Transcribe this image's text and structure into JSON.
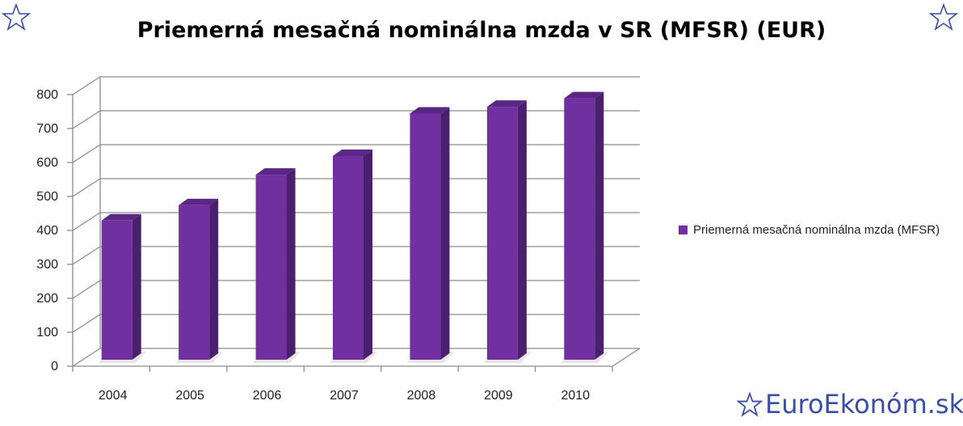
{
  "title": "Priemerná mesačná nominálna mzda v SR (MFSR) (EUR)",
  "brand": {
    "text": "EuroEkonóm.sk",
    "color": "#3a4ea6",
    "icon": "star-outline-icon"
  },
  "colors": {
    "bar_front": "#7030a0",
    "bar_side": "#4a1f6e",
    "bar_top": "#5a2784",
    "grid": "#8c8c8c",
    "star_outline": "#3a4ea6"
  },
  "chart_data": {
    "type": "bar",
    "title": "Priemerná mesačná nominálna mzda v SR (MFSR) (EUR)",
    "categories": [
      "2004",
      "2005",
      "2006",
      "2007",
      "2008",
      "2009",
      "2010"
    ],
    "series": [
      {
        "name": "Priemerná mesačná nominálna mzda (MFSR)",
        "values": [
          410,
          455,
          545,
          600,
          725,
          745,
          770
        ]
      }
    ],
    "ylim": [
      0,
      800
    ],
    "yticks": [
      "0",
      "100",
      "200",
      "300",
      "400",
      "500",
      "600",
      "700",
      "800"
    ],
    "grid": true,
    "legend": "right",
    "three_d": true
  }
}
